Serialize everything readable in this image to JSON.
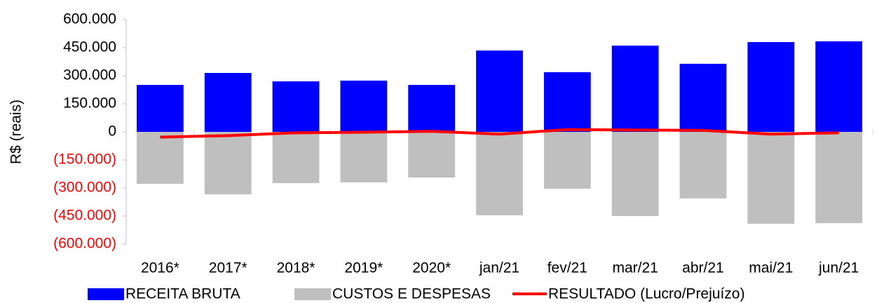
{
  "chart_data": {
    "type": "bar_line",
    "ylabel": "R$ (reais)",
    "categories": [
      "2016*",
      "2017*",
      "2018*",
      "2019*",
      "2020*",
      "jan/21",
      "fev/21",
      "mar/21",
      "abr/21",
      "mai/21",
      "jun/21"
    ],
    "series": [
      {
        "name": "RECEITA BRUTA",
        "type": "bar",
        "color": "#0000ff",
        "values": [
          251000,
          315000,
          270000,
          274000,
          251000,
          435000,
          319000,
          461000,
          364000,
          480000,
          484000
        ]
      },
      {
        "name": "CUSTOS E DESPESAS",
        "type": "bar",
        "color": "#bfbfbf",
        "values": [
          -278000,
          -334000,
          -274000,
          -270000,
          -244000,
          -446000,
          -304000,
          -450000,
          -356000,
          -491000,
          -488000
        ]
      },
      {
        "name": "RESULTADO (Lucro/Prejuízo)",
        "type": "line",
        "color": "#ff0000",
        "values": [
          -28000,
          -20000,
          -5000,
          -2000,
          3000,
          -12000,
          12000,
          10000,
          8000,
          -12000,
          -5000
        ]
      }
    ],
    "ylim": [
      -600000,
      600000
    ],
    "yticks": [
      {
        "value": 600000,
        "label": "600.000"
      },
      {
        "value": 450000,
        "label": "450.000"
      },
      {
        "value": 300000,
        "label": "300.000"
      },
      {
        "value": 150000,
        "label": "150.000"
      },
      0,
      {
        "value": -150000,
        "label": "(150.000)"
      },
      {
        "value": -300000,
        "label": "(300.000)"
      },
      {
        "value": -450000,
        "label": "(450.000)"
      },
      {
        "value": -600000,
        "label": "(600.000)"
      }
    ],
    "negative_tick_color": "#ff0000",
    "legend": "bottom"
  }
}
